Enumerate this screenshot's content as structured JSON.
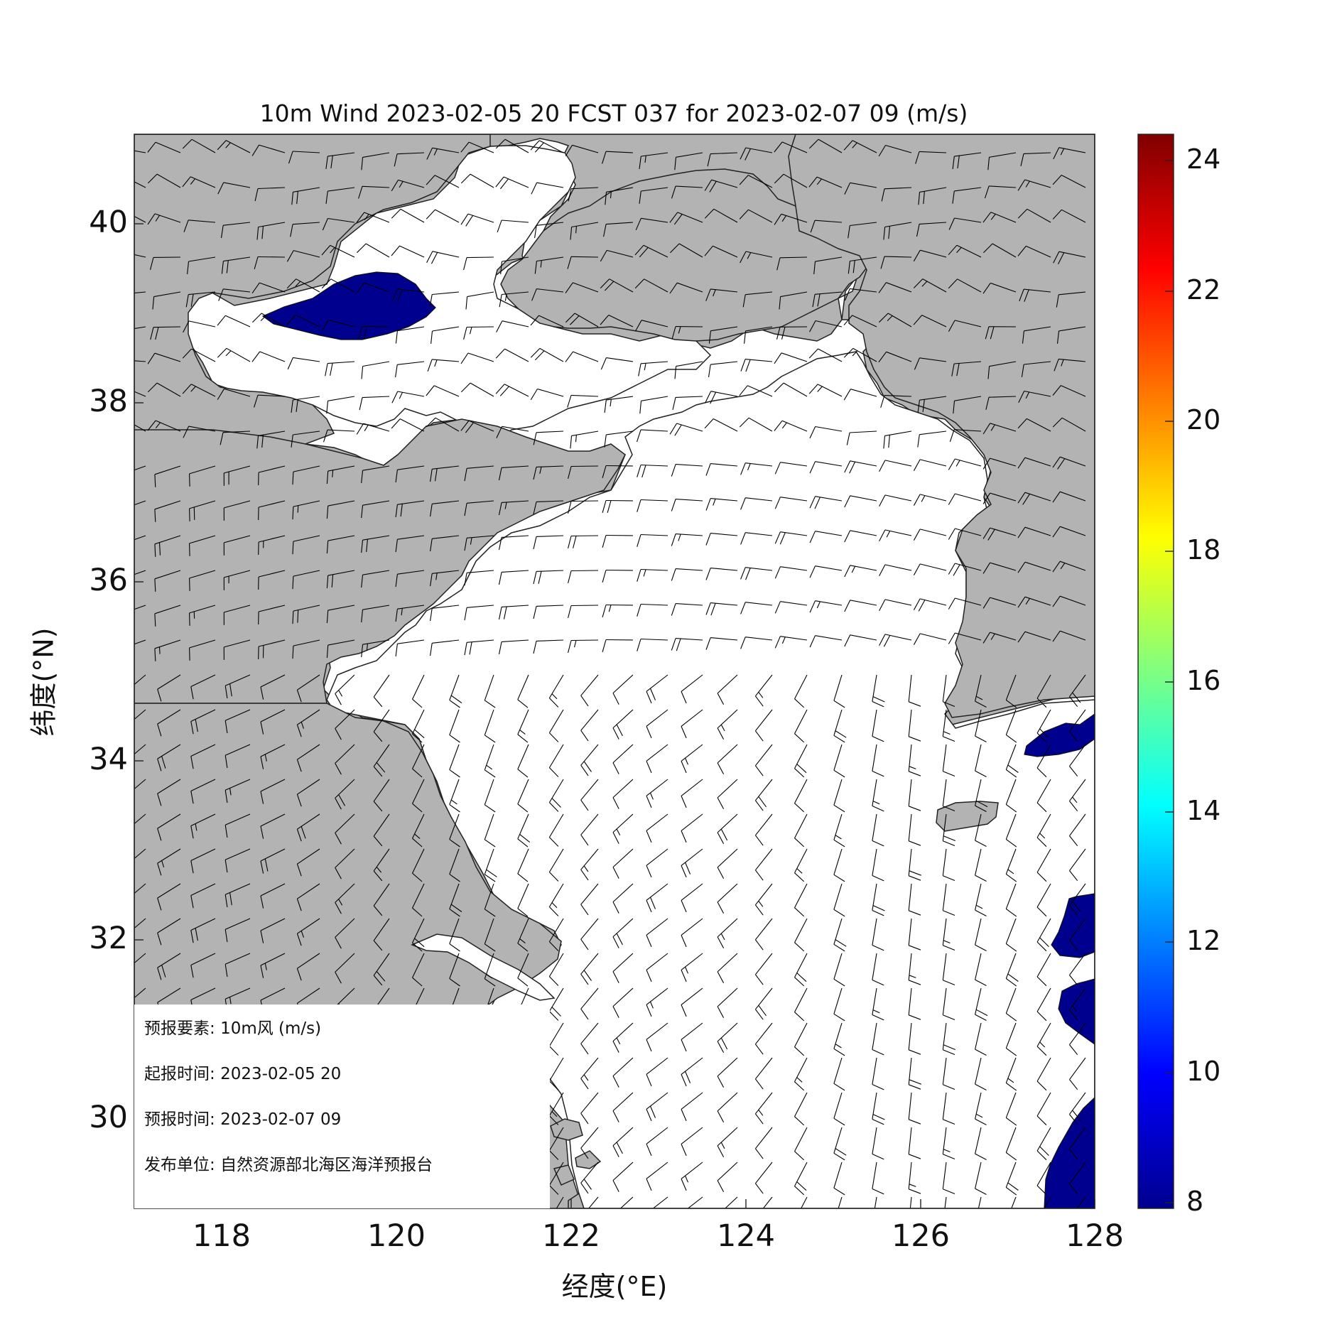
{
  "map": {
    "title": "10m Wind 2023-02-05 20 FCST 037 for 2023-02-07 09 (m/s)",
    "xlabel": "经度(°E)",
    "ylabel": "纬度(°N)",
    "x_ticks": [
      "118",
      "120",
      "122",
      "124",
      "126",
      "128"
    ],
    "y_ticks": [
      "40",
      "38",
      "36",
      "34",
      "32",
      "30"
    ],
    "extent": {
      "lon": [
        117,
        128
      ],
      "lat": [
        29,
        41
      ]
    },
    "colorbar": {
      "ticks": [
        "24",
        "22",
        "20",
        "18",
        "16",
        "14",
        "12",
        "10",
        "8"
      ],
      "range": [
        8,
        24.5
      ],
      "colormap": "jet"
    },
    "colors": {
      "land": "#b3b3b3",
      "sea": "#ffffff",
      "speed_min_fill": "#00008f",
      "barb": "#000000"
    }
  },
  "info": {
    "element_label": "预报要素:",
    "element_value": "10m风 (m/s)",
    "init_label": "起报时间:",
    "init_value": "2023-02-05 20",
    "valid_label": "预报时间:",
    "valid_value": "2023-02-07 09",
    "issuer_label": "发布单位:",
    "issuer_value": "自然资源部北海区海洋预报台"
  }
}
